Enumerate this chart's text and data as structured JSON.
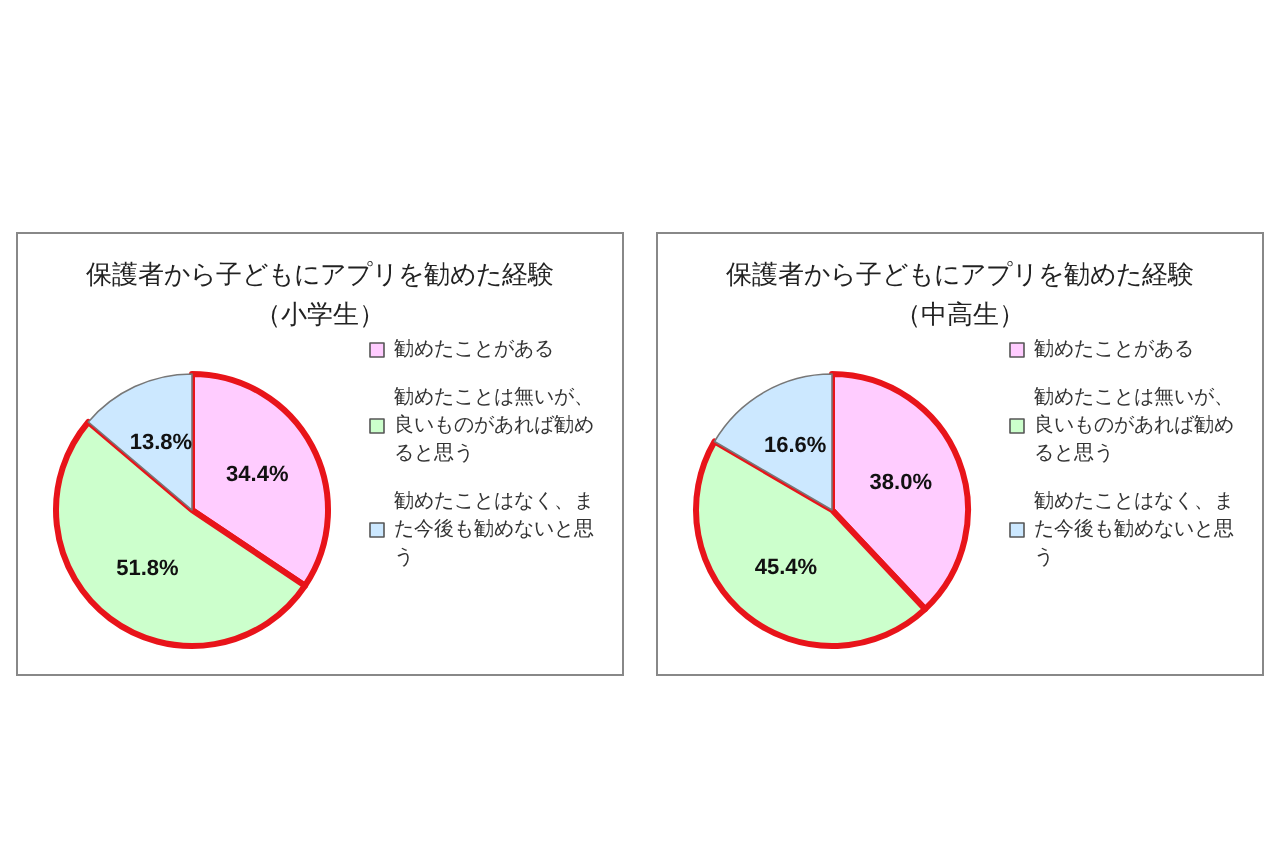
{
  "chart_data": [
    {
      "type": "pie",
      "title": "保護者から子どもにアプリを勧めた経験（小学生）",
      "categories": [
        "勧めたことがある",
        "勧めたことは無いが、良いものがあれば勧めると思う",
        "勧めたことはなく、また今後も勧めないと思う"
      ],
      "values": [
        34.4,
        51.8,
        13.8
      ],
      "colors": [
        "#ffccff",
        "#ccffcc",
        "#cce8ff"
      ],
      "value_labels": [
        "34.4%",
        "51.8%",
        "13.8%"
      ],
      "legend": "right"
    },
    {
      "type": "pie",
      "title": "保護者から子どもにアプリを勧めた経験（中高生）",
      "categories": [
        "勧めたことがある",
        "勧めたことは無いが、良いものがあれば勧めると思う",
        "勧めたことはなく、また今後も勧めないと思う"
      ],
      "values": [
        38.0,
        45.4,
        16.6
      ],
      "colors": [
        "#ffccff",
        "#ccffcc",
        "#cce8ff"
      ],
      "value_labels": [
        "38.0%",
        "45.4%",
        "16.6%"
      ],
      "legend": "right"
    }
  ]
}
